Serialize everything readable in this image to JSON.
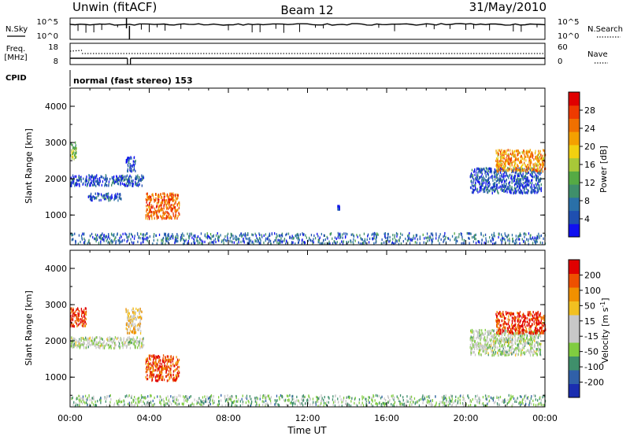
{
  "header": {
    "station": "Unwin (fitACF)",
    "beam": "Beam 12",
    "date": "31/May/2010"
  },
  "chart_data": [
    {
      "type": "line",
      "panel": "noise",
      "left_label": "N.Sky",
      "right_label": "N.Search",
      "left_ticks": [
        "10^5",
        "10^0"
      ],
      "right_ticks": [
        "10^5",
        "10^0"
      ]
    },
    {
      "type": "line",
      "panel": "frequency",
      "left_label_lines": [
        "Freq.",
        "[MHz]"
      ],
      "right_label": "Nave",
      "left_ticks": [
        "18",
        "8"
      ],
      "right_ticks": [
        "60",
        "0"
      ]
    },
    {
      "type": "table",
      "panel": "cpid",
      "label": "CPID",
      "value": "normal (fast stereo) 153"
    },
    {
      "type": "heatmap",
      "panel": "power",
      "ylabel": "Slant Range [km]",
      "ylim": [
        180,
        4500
      ],
      "yticks": [
        "1000",
        "2000",
        "3000",
        "4000"
      ],
      "colorbar_label": "Power [dB]",
      "colorbar_ticks": [
        "28",
        "24",
        "20",
        "16",
        "12",
        "8",
        "4"
      ],
      "colors": [
        "#1010f0",
        "#1f4fb0",
        "#2a70a8",
        "#3f8f6b",
        "#55aa44",
        "#a8c838",
        "#f2d010",
        "#f4a000",
        "#f07000",
        "#ee3a00",
        "#e00000"
      ],
      "regions": [
        {
          "t": [
            0.0,
            0.3
          ],
          "r": [
            2500,
            3000
          ],
          "level": 0.45
        },
        {
          "t": [
            0.0,
            3.7
          ],
          "r": [
            1800,
            2100
          ],
          "level": 0.15
        },
        {
          "t": [
            0.9,
            2.6
          ],
          "r": [
            1400,
            1600
          ],
          "level": 0.15
        },
        {
          "t": [
            2.8,
            3.3
          ],
          "r": [
            2200,
            2600
          ],
          "level": 0.12
        },
        {
          "t": [
            3.8,
            5.5
          ],
          "r": [
            900,
            1600
          ],
          "level": 0.8
        },
        {
          "t": [
            13.5,
            13.6
          ],
          "r": [
            1150,
            1250
          ],
          "level": 0.1
        },
        {
          "t": [
            20.2,
            23.8
          ],
          "r": [
            1600,
            2300
          ],
          "level": 0.15
        },
        {
          "t": [
            21.5,
            24.0
          ],
          "r": [
            2200,
            2800
          ],
          "level": 0.7
        },
        {
          "t": [
            0.0,
            24.0
          ],
          "r": [
            200,
            500
          ],
          "level": 0.2
        }
      ]
    },
    {
      "type": "heatmap",
      "panel": "velocity",
      "ylabel": "Slant Range [km]",
      "ylim": [
        180,
        4500
      ],
      "yticks": [
        "1000",
        "2000",
        "3000",
        "4000"
      ],
      "xlabel": "Time UT",
      "xticks": [
        "00:00",
        "04:00",
        "08:00",
        "12:00",
        "16:00",
        "20:00",
        "00:00"
      ],
      "colorbar_label": "Velocity [m s",
      "colorbar_label_sup": "-1",
      "colorbar_label_end": "]",
      "colorbar_ticks": [
        "200",
        "100",
        "50",
        "15",
        "-15",
        "-50",
        "-100",
        "-200"
      ],
      "colors": [
        "#1a2db0",
        "#3060a8",
        "#3f8f6b",
        "#80cc40",
        "#c8c8c8",
        "#c8c8c8",
        "#f2c020",
        "#f09000",
        "#ee5000",
        "#e00000"
      ],
      "regions": [
        {
          "t": [
            0.0,
            0.8
          ],
          "r": [
            2400,
            2900
          ],
          "level": 0.9
        },
        {
          "t": [
            0.0,
            3.7
          ],
          "r": [
            1800,
            2100
          ],
          "level": 0.45
        },
        {
          "t": [
            2.8,
            3.6
          ],
          "r": [
            2200,
            2900
          ],
          "level": 0.6
        },
        {
          "t": [
            3.8,
            5.5
          ],
          "r": [
            900,
            1600
          ],
          "level": 0.85
        },
        {
          "t": [
            20.2,
            23.8
          ],
          "r": [
            1600,
            2300
          ],
          "level": 0.45
        },
        {
          "t": [
            21.5,
            24.0
          ],
          "r": [
            2200,
            2800
          ],
          "level": 0.9
        },
        {
          "t": [
            0.0,
            24.0
          ],
          "r": [
            200,
            500
          ],
          "level": 0.35
        }
      ]
    }
  ]
}
